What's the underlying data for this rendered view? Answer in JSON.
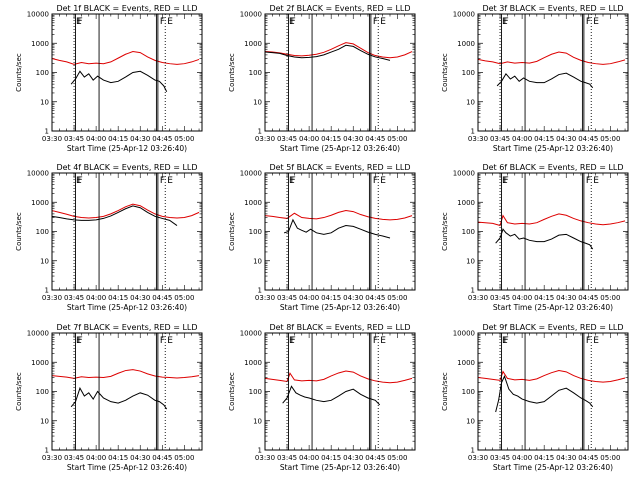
{
  "chart_data": {
    "type": "line",
    "shared": {
      "xlabel": "Start Time (25-Apr-12 03:26:40)",
      "ylabel": "Counts/sec",
      "x_ticks": [
        "03:30",
        "03:45",
        "04:00",
        "04:15",
        "04:30",
        "04:45",
        "05:00"
      ],
      "y_ticks": [
        "1",
        "10",
        "100",
        "1000",
        "10000"
      ],
      "xlim": [
        "03:30",
        "05:12"
      ],
      "ylim": [
        1,
        10000
      ],
      "log_y": true,
      "colors": {
        "events": "#000000",
        "lld": "#dd0000",
        "axes": "#000000"
      },
      "markers": [
        {
          "label": "E",
          "time": "03:45",
          "style": "dotted"
        },
        {
          "label": "F",
          "time": "03:46",
          "style": "solid"
        },
        {
          "label": "",
          "time": "04:02",
          "style": "solid"
        },
        {
          "label": "",
          "time": "04:41",
          "style": "solid"
        },
        {
          "label": "F",
          "time": "04:42",
          "style": "solid"
        },
        {
          "label": "E",
          "time": "04:47",
          "style": "dotted"
        }
      ]
    },
    "panels": [
      {
        "title": "Det 1f BLACK = Events, RED = LLD",
        "series": [
          {
            "name": "Events",
            "x": [
              "03:43",
              "03:46",
              "03:49",
              "03:52",
              "03:55",
              "03:58",
              "04:01",
              "04:05",
              "04:10",
              "04:15",
              "04:20",
              "04:25",
              "04:30",
              "04:35",
              "04:40",
              "04:43",
              "04:46",
              "04:48"
            ],
            "values": [
              40,
              60,
              110,
              70,
              90,
              55,
              75,
              55,
              45,
              50,
              70,
              100,
              110,
              80,
              55,
              50,
              35,
              22
            ]
          },
          {
            "name": "LLD",
            "x": [
              "03:30",
              "03:35",
              "03:40",
              "03:45",
              "03:50",
              "03:55",
              "04:00",
              "04:05",
              "04:10",
              "04:15",
              "04:20",
              "04:25",
              "04:30",
              "04:35",
              "04:40",
              "04:45",
              "04:50",
              "04:55",
              "05:00",
              "05:05",
              "05:10"
            ],
            "values": [
              300,
              260,
              230,
              190,
              220,
              200,
              210,
              200,
              230,
              310,
              420,
              520,
              480,
              340,
              260,
              220,
              200,
              190,
              200,
              230,
              280
            ]
          }
        ]
      },
      {
        "title": "Det 2f BLACK = Events, RED = LLD",
        "series": [
          {
            "name": "Events",
            "x": [
              "03:30",
              "03:35",
              "03:40",
              "03:45",
              "03:50",
              "03:55",
              "04:00",
              "04:05",
              "04:10",
              "04:15",
              "04:20",
              "04:25",
              "04:30",
              "04:35",
              "04:40",
              "04:45",
              "04:50",
              "04:55"
            ],
            "values": [
              500,
              480,
              450,
              380,
              340,
              320,
              330,
              350,
              400,
              500,
              620,
              850,
              780,
              560,
              420,
              340,
              300,
              260
            ]
          },
          {
            "name": "LLD",
            "x": [
              "03:30",
              "03:35",
              "03:40",
              "03:45",
              "03:50",
              "03:55",
              "04:00",
              "04:05",
              "04:10",
              "04:15",
              "04:20",
              "04:25",
              "04:30",
              "04:35",
              "04:40",
              "04:45",
              "04:50",
              "04:55",
              "05:00",
              "05:05",
              "05:10"
            ],
            "values": [
              520,
              500,
              470,
              420,
              380,
              370,
              390,
              420,
              490,
              620,
              820,
              1050,
              950,
              680,
              480,
              380,
              340,
              320,
              340,
              400,
              520
            ]
          }
        ]
      },
      {
        "title": "Det 3f BLACK = Events, RED = LLD",
        "series": [
          {
            "name": "Events",
            "x": [
              "03:43",
              "03:46",
              "03:49",
              "03:52",
              "03:55",
              "03:58",
              "04:01",
              "04:05",
              "04:10",
              "04:15",
              "04:20",
              "04:25",
              "04:30",
              "04:35",
              "04:40",
              "04:43",
              "04:46",
              "04:48"
            ],
            "values": [
              35,
              50,
              90,
              60,
              75,
              50,
              65,
              50,
              45,
              45,
              60,
              85,
              95,
              70,
              50,
              45,
              40,
              30
            ]
          },
          {
            "name": "LLD",
            "x": [
              "03:30",
              "03:35",
              "03:40",
              "03:45",
              "03:50",
              "03:55",
              "04:00",
              "04:05",
              "04:10",
              "04:15",
              "04:20",
              "04:25",
              "04:30",
              "04:35",
              "04:40",
              "04:45",
              "04:50",
              "04:55",
              "05:00",
              "05:05",
              "05:10"
            ],
            "values": [
              280,
              250,
              230,
              200,
              230,
              210,
              220,
              210,
              240,
              320,
              420,
              500,
              460,
              330,
              260,
              220,
              200,
              190,
              200,
              230,
              270
            ]
          }
        ]
      },
      {
        "title": "Det 4f BLACK = Events, RED = LLD",
        "series": [
          {
            "name": "Events",
            "x": [
              "03:30",
              "03:35",
              "03:40",
              "03:45",
              "03:50",
              "03:55",
              "04:00",
              "04:05",
              "04:10",
              "04:15",
              "04:20",
              "04:25",
              "04:30",
              "04:35",
              "04:40",
              "04:45",
              "04:50",
              "04:55"
            ],
            "values": [
              330,
              300,
              270,
              250,
              240,
              240,
              250,
              280,
              340,
              450,
              600,
              750,
              650,
              450,
              330,
              280,
              240,
              160
            ]
          },
          {
            "name": "LLD",
            "x": [
              "03:30",
              "03:35",
              "03:40",
              "03:45",
              "03:50",
              "03:55",
              "04:00",
              "04:05",
              "04:10",
              "04:15",
              "04:20",
              "04:25",
              "04:30",
              "04:35",
              "04:40",
              "04:45",
              "04:50",
              "04:55",
              "05:00",
              "05:05",
              "05:10"
            ],
            "values": [
              520,
              450,
              390,
              330,
              300,
              290,
              300,
              330,
              400,
              520,
              700,
              860,
              760,
              540,
              400,
              330,
              300,
              290,
              300,
              350,
              450
            ]
          }
        ]
      },
      {
        "title": "Det 5f BLACK = Events, RED = LLD",
        "series": [
          {
            "name": "Events",
            "x": [
              "03:43",
              "03:46",
              "03:49",
              "03:52",
              "03:55",
              "03:58",
              "04:01",
              "04:05",
              "04:10",
              "04:15",
              "04:20",
              "04:25",
              "04:30",
              "04:35",
              "04:40",
              "04:45",
              "04:50",
              "04:55"
            ],
            "values": [
              90,
              100,
              250,
              130,
              110,
              95,
              120,
              90,
              80,
              90,
              130,
              160,
              150,
              120,
              95,
              80,
              70,
              60
            ]
          },
          {
            "name": "LLD",
            "x": [
              "03:30",
              "03:35",
              "03:40",
              "03:45",
              "03:50",
              "03:55",
              "04:00",
              "04:05",
              "04:10",
              "04:15",
              "04:20",
              "04:25",
              "04:30",
              "04:35",
              "04:40",
              "04:45",
              "04:50",
              "04:55",
              "05:00",
              "05:05",
              "05:10"
            ],
            "values": [
              350,
              330,
              300,
              280,
              420,
              300,
              280,
              270,
              300,
              360,
              450,
              520,
              480,
              380,
              320,
              280,
              260,
              250,
              260,
              290,
              350
            ]
          }
        ]
      },
      {
        "title": "Det 6f BLACK = Events, RED = LLD",
        "series": [
          {
            "name": "Events",
            "x": [
              "03:42",
              "03:45",
              "03:47",
              "03:49",
              "03:52",
              "03:55",
              "03:58",
              "04:01",
              "04:05",
              "04:10",
              "04:15",
              "04:20",
              "04:25",
              "04:30",
              "04:35",
              "04:40",
              "04:43",
              "04:46",
              "04:48"
            ],
            "values": [
              40,
              60,
              120,
              90,
              70,
              80,
              55,
              60,
              50,
              45,
              45,
              55,
              75,
              80,
              60,
              45,
              40,
              35,
              25
            ]
          },
          {
            "name": "LLD",
            "x": [
              "03:30",
              "03:35",
              "03:40",
              "03:45",
              "03:47",
              "03:50",
              "03:55",
              "04:00",
              "04:05",
              "04:10",
              "04:15",
              "04:20",
              "04:25",
              "04:30",
              "04:35",
              "04:40",
              "04:45",
              "04:50",
              "04:55",
              "05:00",
              "05:05",
              "05:10"
            ],
            "values": [
              210,
              200,
              190,
              160,
              350,
              200,
              180,
              190,
              180,
              200,
              260,
              330,
              400,
              360,
              280,
              230,
              200,
              180,
              170,
              180,
              200,
              230
            ]
          }
        ]
      },
      {
        "title": "Det 7f BLACK = Events, RED = LLD",
        "series": [
          {
            "name": "Events",
            "x": [
              "03:43",
              "03:46",
              "03:49",
              "03:52",
              "03:55",
              "03:58",
              "04:01",
              "04:05",
              "04:10",
              "04:15",
              "04:20",
              "04:25",
              "04:30",
              "04:35",
              "04:40",
              "04:43",
              "04:46",
              "04:48"
            ],
            "values": [
              30,
              45,
              130,
              70,
              90,
              55,
              100,
              60,
              45,
              40,
              50,
              70,
              90,
              75,
              50,
              45,
              35,
              25
            ]
          },
          {
            "name": "LLD",
            "x": [
              "03:30",
              "03:35",
              "03:40",
              "03:45",
              "03:50",
              "03:55",
              "04:00",
              "04:05",
              "04:10",
              "04:15",
              "04:20",
              "04:25",
              "04:30",
              "04:35",
              "04:40",
              "04:45",
              "04:50",
              "04:55",
              "05:00",
              "05:05",
              "05:10"
            ],
            "values": [
              350,
              330,
              310,
              280,
              320,
              300,
              310,
              300,
              330,
              420,
              520,
              560,
              500,
              400,
              340,
              310,
              300,
              290,
              300,
              320,
              350
            ]
          }
        ]
      },
      {
        "title": "Det 8f BLACK = Events, RED = LLD",
        "series": [
          {
            "name": "Events",
            "x": [
              "03:42",
              "03:45",
              "03:48",
              "03:51",
              "03:54",
              "03:57",
              "04:00",
              "04:05",
              "04:10",
              "04:15",
              "04:20",
              "04:25",
              "04:30",
              "04:35",
              "04:40",
              "04:45",
              "04:48"
            ],
            "values": [
              40,
              60,
              150,
              90,
              75,
              65,
              60,
              50,
              45,
              50,
              70,
              100,
              120,
              80,
              60,
              50,
              35
            ]
          },
          {
            "name": "LLD",
            "x": [
              "03:30",
              "03:35",
              "03:40",
              "03:45",
              "03:47",
              "03:50",
              "03:55",
              "04:00",
              "04:05",
              "04:10",
              "04:15",
              "04:20",
              "04:25",
              "04:30",
              "04:35",
              "04:40",
              "04:45",
              "04:50",
              "04:55",
              "05:00",
              "05:05",
              "05:10"
            ],
            "values": [
              280,
              260,
              240,
              220,
              420,
              250,
              230,
              240,
              230,
              260,
              340,
              430,
              500,
              460,
              340,
              270,
              230,
              210,
              200,
              210,
              240,
              280
            ]
          }
        ]
      },
      {
        "title": "Det 9f BLACK = Events, RED = LLD",
        "series": [
          {
            "name": "Events",
            "x": [
              "03:42",
              "03:44",
              "03:46",
              "03:48",
              "03:51",
              "03:54",
              "03:57",
              "04:00",
              "04:05",
              "04:10",
              "04:15",
              "04:20",
              "04:25",
              "04:30",
              "04:35",
              "04:40",
              "04:43",
              "04:46",
              "04:48"
            ],
            "values": [
              20,
              50,
              200,
              330,
              120,
              80,
              70,
              55,
              45,
              40,
              45,
              70,
              110,
              130,
              90,
              60,
              50,
              40,
              30
            ]
          },
          {
            "name": "LLD",
            "x": [
              "03:30",
              "03:35",
              "03:40",
              "03:45",
              "03:47",
              "03:50",
              "03:55",
              "04:00",
              "04:05",
              "04:10",
              "04:15",
              "04:20",
              "04:25",
              "04:30",
              "04:35",
              "04:40",
              "04:45",
              "04:50",
              "04:55",
              "05:00",
              "05:05",
              "05:10"
            ],
            "values": [
              300,
              280,
              260,
              240,
              480,
              280,
              250,
              260,
              240,
              270,
              350,
              440,
              520,
              470,
              350,
              280,
              240,
              220,
              210,
              220,
              250,
              290
            ]
          }
        ]
      }
    ]
  }
}
